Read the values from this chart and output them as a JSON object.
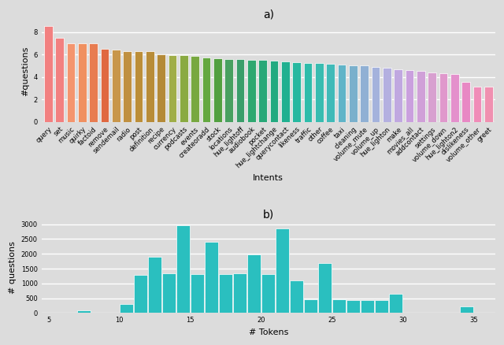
{
  "bar_chart": {
    "categories": [
      "query",
      "set",
      "music",
      "quirky",
      "factoid",
      "remove",
      "sendemail",
      "radio",
      "post",
      "definition",
      "recipe",
      "currency",
      "podcasts",
      "events",
      "createoradd",
      "stock",
      "locations",
      "hue_lightoff",
      "audiobook",
      "pocket",
      "hue_lightchange",
      "querycontact",
      "likeness",
      "traffic",
      "other",
      "coffee",
      "taxi",
      "cleaning",
      "volume_mute",
      "volume_up",
      "hue_lighton",
      "make",
      "movies_all",
      "addcontact",
      "settings",
      "volume_down",
      "hue_lighton2",
      "dislikeness",
      "volume_other",
      "greet"
    ],
    "values": [
      8.5,
      7.5,
      7.0,
      7.0,
      7.0,
      6.5,
      6.4,
      6.3,
      6.3,
      6.25,
      6.0,
      5.95,
      5.95,
      5.85,
      5.75,
      5.65,
      5.6,
      5.55,
      5.5,
      5.48,
      5.42,
      5.35,
      5.28,
      5.25,
      5.22,
      5.15,
      5.1,
      5.05,
      5.0,
      4.88,
      4.82,
      4.7,
      4.58,
      4.5,
      4.38,
      4.32,
      4.28,
      3.58,
      3.15,
      3.12
    ],
    "title": "a)",
    "xlabel": "Intents",
    "ylabel": "#questions",
    "ylim": [
      0,
      9
    ],
    "yticks": [
      0,
      2,
      4,
      6,
      8
    ],
    "bg_color": "#dcdcdc",
    "colors": [
      "#f28080",
      "#f28080",
      "#f4956e",
      "#f09060",
      "#e87c50",
      "#e06840",
      "#c8964a",
      "#c09040",
      "#bc8e38",
      "#b88c38",
      "#b48a38",
      "#a0ae48",
      "#8aaa42",
      "#78a840",
      "#64a840",
      "#52a040",
      "#48a060",
      "#3a9e6a",
      "#2ea870",
      "#28a878",
      "#22aa80",
      "#20b090",
      "#26b8a0",
      "#2ebcaa",
      "#38bcb0",
      "#40bab8",
      "#60b4c8",
      "#7ab0cc",
      "#90b0d4",
      "#a4b2dc",
      "#b4b0e0",
      "#c0a8e0",
      "#caa0de",
      "#d0a0d8",
      "#d8a0d0",
      "#e098cc",
      "#e490cc",
      "#e888c4",
      "#f08cb8",
      "#f090b0"
    ]
  },
  "hist_chart": {
    "bin_left": [
      5,
      6,
      7,
      8,
      9,
      10,
      11,
      12,
      13,
      14,
      15,
      16,
      17,
      18,
      19,
      20,
      21,
      22,
      23,
      24,
      25,
      26,
      27,
      28,
      29,
      30,
      31,
      32,
      33,
      34,
      35
    ],
    "counts": [
      0,
      0,
      100,
      0,
      0,
      310,
      1300,
      1900,
      1350,
      2950,
      1320,
      2400,
      1320,
      1330,
      1980,
      1320,
      2850,
      1100,
      460,
      1700,
      470,
      430,
      450,
      430,
      650,
      0,
      0,
      0,
      0,
      235,
      0
    ],
    "title": "b)",
    "xlabel": "# Tokens",
    "ylabel": "# questions",
    "color": "#2abfbf",
    "bg_color": "#dcdcdc",
    "xlim": [
      4.5,
      36.5
    ],
    "ylim": [
      0,
      3100
    ],
    "xticks": [
      5,
      10,
      15,
      20,
      25,
      30,
      35
    ],
    "yticks": [
      0,
      500,
      1000,
      1500,
      2000,
      2500,
      3000
    ]
  }
}
